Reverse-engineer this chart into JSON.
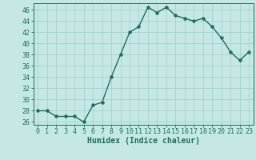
{
  "x": [
    0,
    1,
    2,
    3,
    4,
    5,
    6,
    7,
    8,
    9,
    10,
    11,
    12,
    13,
    14,
    15,
    16,
    17,
    18,
    19,
    20,
    21,
    22,
    23
  ],
  "y": [
    28,
    28,
    27,
    27,
    27,
    26,
    29,
    29.5,
    34,
    38,
    42,
    43,
    46.5,
    45.5,
    46.5,
    45,
    44.5,
    44,
    44.5,
    43,
    41,
    38.5,
    37,
    38.5
  ],
  "line_color": "#1a7060",
  "marker_color": "#1a7060",
  "bg_color": "#c5e8e5",
  "grid_color": "#a0ccc8",
  "xlabel": "Humidex (Indice chaleur)",
  "ylim": [
    25.5,
    47.2
  ],
  "xlim": [
    -0.5,
    23.5
  ],
  "yticks": [
    26,
    28,
    30,
    32,
    34,
    36,
    38,
    40,
    42,
    44,
    46
  ],
  "xticks": [
    0,
    1,
    2,
    3,
    4,
    5,
    6,
    7,
    8,
    9,
    10,
    11,
    12,
    13,
    14,
    15,
    16,
    17,
    18,
    19,
    20,
    21,
    22,
    23
  ],
  "tick_color": "#1a7060",
  "font_color": "#1a7060",
  "xlabel_fontsize": 7.0,
  "tick_fontsize": 6.0,
  "linewidth": 1.0,
  "markersize": 2.2
}
